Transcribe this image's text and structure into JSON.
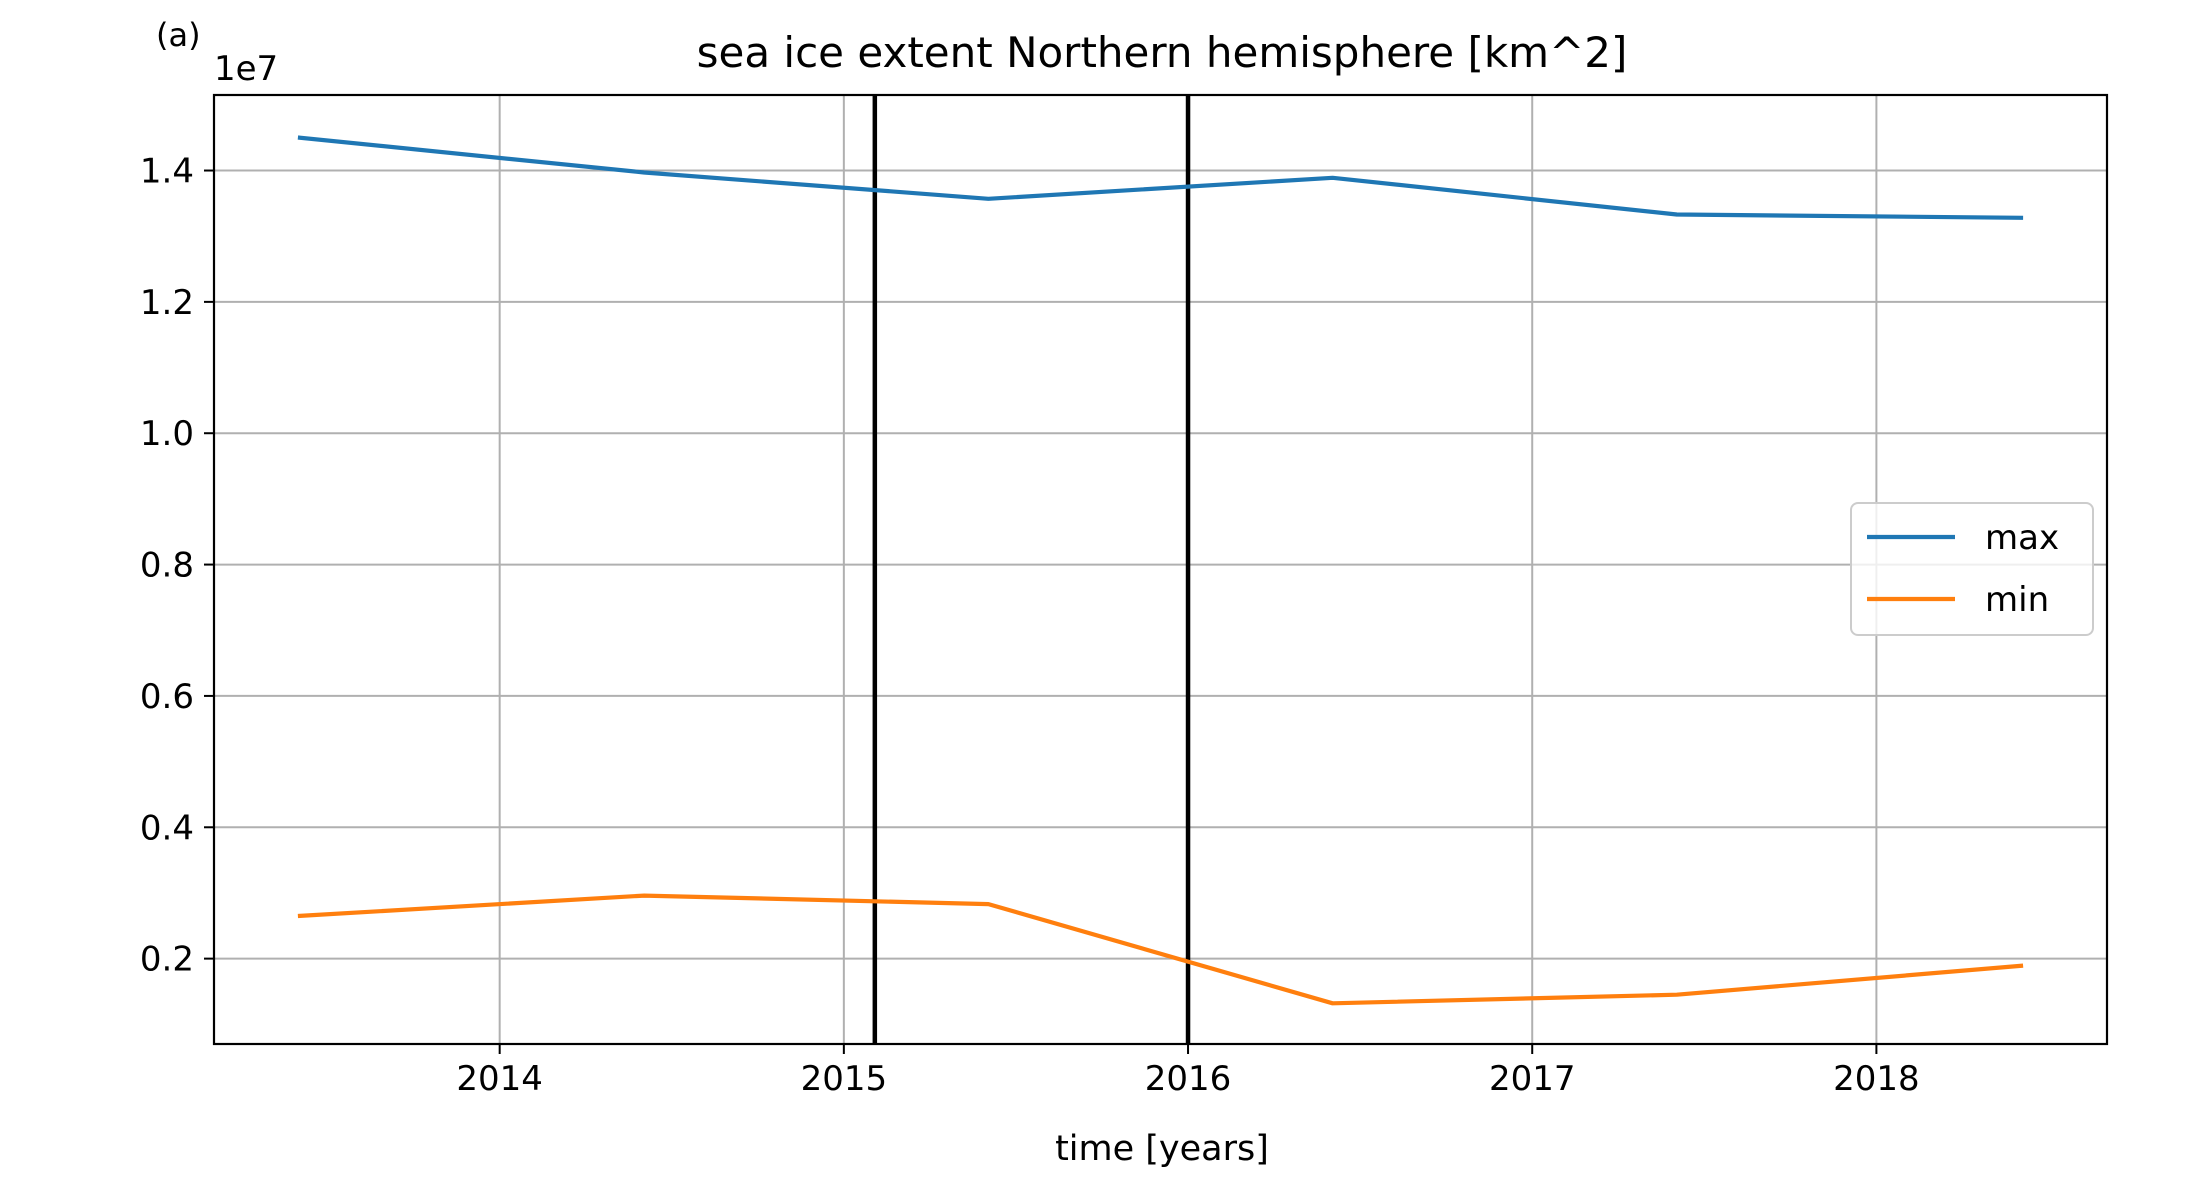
{
  "chart_data": {
    "type": "line",
    "panel_label": "(a)",
    "title": "sea ice extent Northern hemisphere [km^2]",
    "xlabel": "time [years]",
    "ylabel": "",
    "y_offset_label": "1e7",
    "xlim": [
      2013.17,
      2018.67
    ],
    "ylim": [
      0.07,
      1.515
    ],
    "x_ticks": [
      2014,
      2015,
      2016,
      2017,
      2018
    ],
    "x_tick_labels": [
      "2014",
      "2015",
      "2016",
      "2017",
      "2018"
    ],
    "y_ticks": [
      0.2,
      0.4,
      0.6,
      0.8,
      1.0,
      1.2,
      1.4
    ],
    "y_tick_labels": [
      "0.2",
      "0.4",
      "0.6",
      "0.8",
      "1.0",
      "1.2",
      "1.4"
    ],
    "grid": true,
    "legend_position": "center-right",
    "vertical_lines": [
      2015.09,
      2016.0
    ],
    "series": [
      {
        "name": "max",
        "color": "#1f77b4",
        "x": [
          2013.42,
          2014.42,
          2015.42,
          2016.42,
          2017.42,
          2018.42
        ],
        "values": [
          1.45,
          1.397,
          1.357,
          1.389,
          1.333,
          1.328
        ]
      },
      {
        "name": "min",
        "color": "#ff7f0e",
        "x": [
          2013.42,
          2014.42,
          2015.42,
          2016.42,
          2017.42,
          2018.42
        ],
        "values": [
          0.265,
          0.296,
          0.283,
          0.132,
          0.145,
          0.189
        ]
      }
    ]
  }
}
